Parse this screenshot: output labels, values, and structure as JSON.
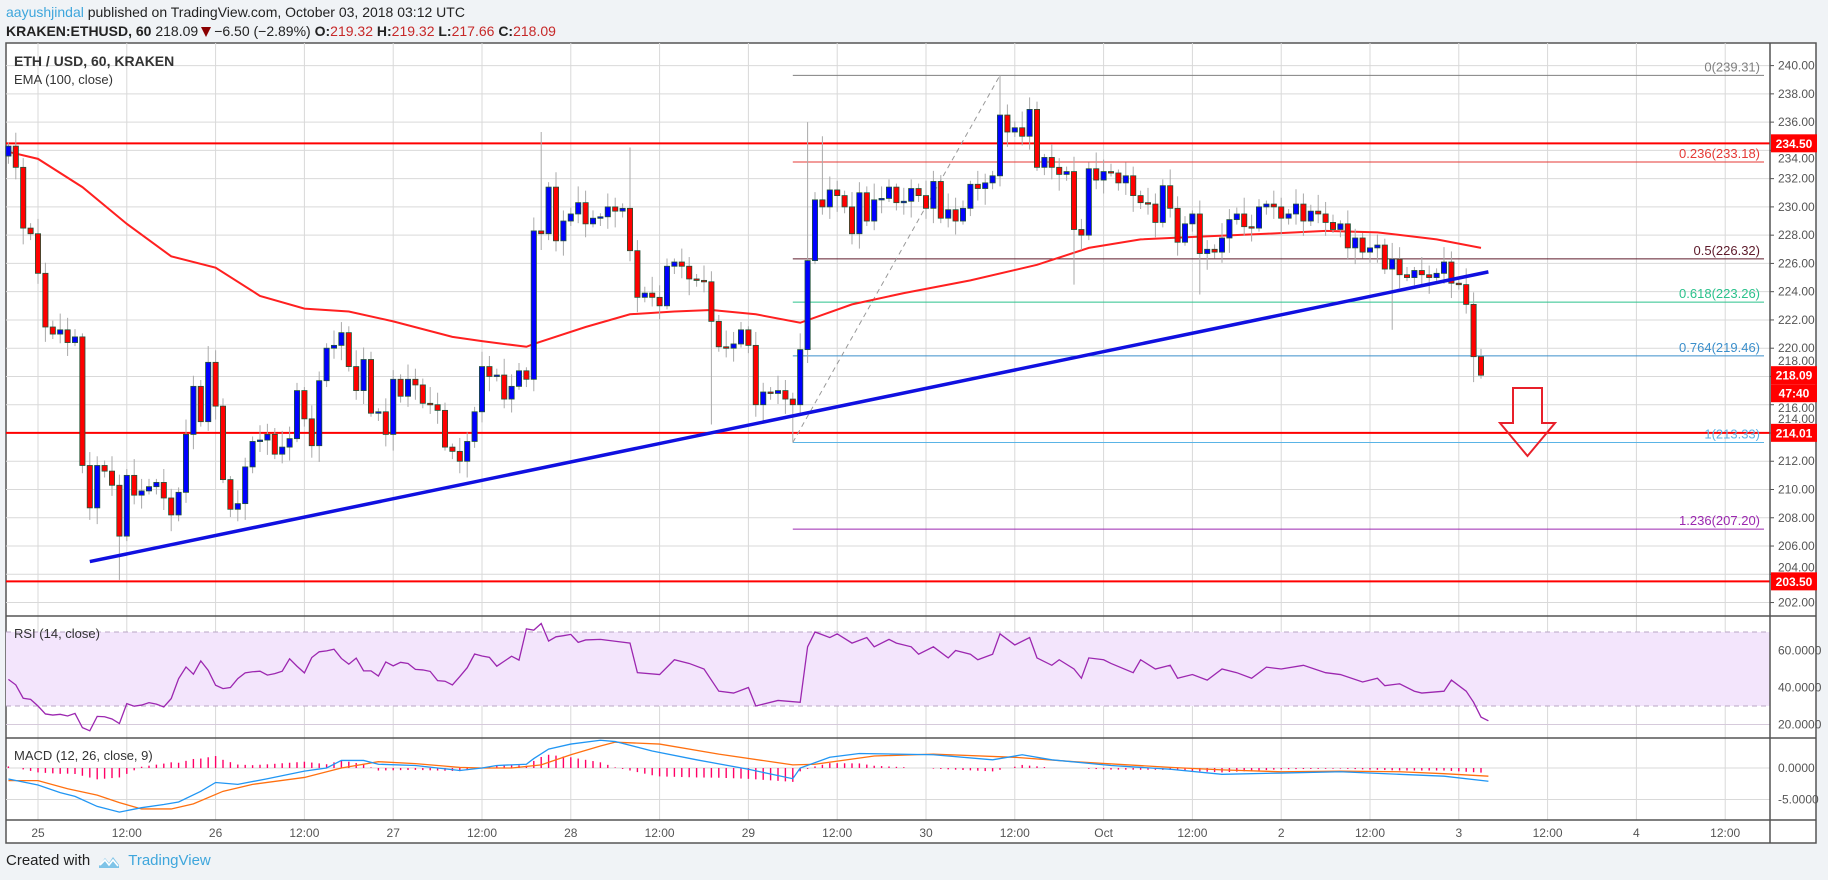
{
  "header": {
    "author": "aayushjindal",
    "published": "published on TradingView.com, October 03, 2018 03:12 UTC",
    "symbol": "KRAKEN:ETHUSD, 60",
    "last": "218.09",
    "change": "−6.50 (−2.89%)",
    "o_label": "O:",
    "o": "219.32",
    "h_label": "H:",
    "h": "219.32",
    "l_label": "L:",
    "l": "217.66",
    "c_label": "C:",
    "c": "218.09",
    "direction_icon": "down-triangle-icon"
  },
  "legend": {
    "title": "ETH / USD, 60, KRAKEN",
    "ema": "EMA (100, close)",
    "rsi": "RSI (14, close)",
    "macd": "MACD (12, 26, close, 9)"
  },
  "footer": {
    "created": "Created with",
    "brand": "TradingView"
  },
  "colors": {
    "up": "#0000ff",
    "down": "#ff0000",
    "border": "#225437",
    "ema": "#ff2020",
    "trend": "#1010e0",
    "hline": "#ff0000",
    "rsi": "#9c27b0",
    "macd": "#2196f3",
    "signal": "#ff7010",
    "hist": "#ff0066"
  },
  "chart_data": {
    "type": "candlestick",
    "interval": "60",
    "time_labels": [
      "25",
      "12:00",
      "26",
      "12:00",
      "27",
      "12:00",
      "28",
      "12:00",
      "29",
      "12:00",
      "30",
      "12:00",
      "Oct",
      "12:00",
      "2",
      "12:00",
      "3",
      "12:00",
      "4",
      "12:00"
    ],
    "ylim": [
      201,
      241.5
    ],
    "yticks": [
      202,
      204,
      206,
      208,
      210,
      212,
      214,
      216,
      218,
      220,
      222,
      224,
      226,
      228,
      230,
      232,
      234,
      236,
      238,
      240
    ],
    "first_open": 233.6,
    "closes": [
      234.3,
      232.8,
      228.5,
      228.1,
      225.3,
      221.5,
      221.0,
      221.3,
      220.4,
      220.8,
      211.7,
      208.7,
      211.7,
      211.3,
      210.3,
      206.7,
      211.0,
      209.6,
      209.9,
      210.2,
      210.5,
      209.4,
      208.2,
      209.8,
      213.9,
      217.3,
      214.8,
      219.0,
      215.9,
      210.7,
      208.6,
      209.0,
      211.6,
      213.4,
      213.5,
      213.9,
      212.5,
      213.0,
      213.6,
      217.0,
      215.0,
      213.1,
      217.7,
      220.0,
      220.2,
      221.1,
      218.7,
      217.0,
      219.2,
      215.4,
      215.5,
      213.9,
      217.8,
      216.6,
      217.8,
      217.4,
      216.1,
      216.0,
      215.6,
      213.0,
      212.7,
      212.0,
      213.4,
      215.5,
      218.7,
      218.0,
      218.1,
      216.4,
      217.3,
      218.4,
      217.8,
      228.3,
      228.1,
      231.4,
      227.6,
      229.0,
      229.5,
      230.3,
      228.8,
      229.2,
      229.3,
      230.0,
      229.7,
      229.9,
      226.9,
      223.6,
      223.9,
      223.6,
      223.0,
      225.8,
      226.1,
      225.8,
      224.9,
      224.8,
      224.7,
      221.9,
      220.1,
      220.0,
      220.3,
      221.3,
      220.2,
      216.0,
      216.9,
      216.8,
      217.0,
      216.4,
      216.0,
      219.9,
      226.2,
      230.5,
      230.0,
      231.2,
      230.8,
      230.0,
      228.1,
      231.0,
      229.0,
      230.5,
      230.6,
      231.4,
      230.3,
      230.4,
      231.3,
      230.8,
      229.9,
      231.8,
      229.2,
      229.8,
      229.0,
      229.9,
      231.6,
      231.3,
      231.7,
      232.2,
      236.5,
      235.3,
      235.6,
      235.0,
      236.9,
      232.8,
      233.5,
      232.8,
      232.3,
      232.5,
      228.4,
      228.0,
      232.7,
      231.9,
      232.5,
      232.4,
      231.7,
      232.2,
      230.8,
      230.3,
      230.2,
      228.9,
      231.5,
      229.9,
      227.5,
      228.8,
      229.5,
      226.7,
      227.0,
      226.8,
      227.8,
      229.1,
      229.5,
      228.6,
      228.5,
      230.0,
      230.2,
      230.0,
      229.2,
      229.5,
      230.2,
      229.0,
      229.7,
      229.5,
      228.9,
      228.4,
      228.8,
      227.1,
      227.8,
      226.8,
      227.1,
      227.3,
      225.6,
      226.3,
      225.2,
      225.0,
      225.5,
      225.2,
      225.0,
      225.3,
      226.1,
      224.6,
      224.5,
      223.1,
      219.4,
      218.09
    ],
    "extremes": [
      [
        134,
        "h",
        239.31
      ],
      [
        106,
        "l",
        213.33
      ],
      [
        72,
        "h",
        235.3
      ],
      [
        84,
        "h",
        234.2
      ],
      [
        15,
        "l",
        203.6
      ],
      [
        95,
        "l",
        214.6
      ],
      [
        144,
        "l",
        224.5
      ],
      [
        161,
        "l",
        223.8
      ],
      [
        187,
        "l",
        221.3
      ],
      [
        198,
        "l",
        217.6
      ],
      [
        108,
        "h",
        236.0
      ],
      [
        110,
        "h",
        235.0
      ]
    ],
    "ema": [
      [
        0,
        233.9
      ],
      [
        4,
        233.4
      ],
      [
        10,
        231.4
      ],
      [
        16,
        228.8
      ],
      [
        22,
        226.5
      ],
      [
        28,
        225.7
      ],
      [
        34,
        223.7
      ],
      [
        40,
        222.8
      ],
      [
        46,
        222.6
      ],
      [
        52,
        221.9
      ],
      [
        60,
        220.8
      ],
      [
        64,
        220.5
      ],
      [
        70,
        220.1
      ],
      [
        71,
        220.3
      ],
      [
        78,
        221.5
      ],
      [
        84,
        222.4
      ],
      [
        90,
        222.6
      ],
      [
        95,
        222.7
      ],
      [
        101,
        222.4
      ],
      [
        107,
        221.8
      ],
      [
        114,
        223.1
      ],
      [
        121,
        223.9
      ],
      [
        130,
        224.8
      ],
      [
        139,
        225.9
      ],
      [
        146,
        227.1
      ],
      [
        153,
        227.7
      ],
      [
        161,
        227.9
      ],
      [
        170,
        228.1
      ],
      [
        178,
        228.3
      ],
      [
        185,
        228.2
      ],
      [
        193,
        227.7
      ],
      [
        199,
        227.1
      ]
    ],
    "trendline": [
      [
        11,
        204.9
      ],
      [
        200,
        225.4
      ]
    ],
    "hlines": [
      {
        "price": 234.5,
        "label": "234.50"
      },
      {
        "price": 214.01,
        "label": "214.01"
      },
      {
        "price": 203.5,
        "label": "203.50"
      }
    ],
    "last_price": {
      "price": 218.09,
      "label": "218.09",
      "countdown": "47:40"
    },
    "fib": {
      "from": [
        106,
        213.33
      ],
      "to": [
        134,
        239.31
      ],
      "levels": [
        {
          "ratio": "0",
          "price": 239.31,
          "label": "0(239.31)",
          "color": "#808080"
        },
        {
          "ratio": "0.236",
          "price": 233.18,
          "label": "0.236(233.18)",
          "color": "#e53935"
        },
        {
          "ratio": "0.5",
          "price": 226.32,
          "label": "0.5(226.32)",
          "color": "#5d1a2a"
        },
        {
          "ratio": "0.618",
          "price": 223.26,
          "label": "0.618(223.26)",
          "color": "#2bc28c"
        },
        {
          "ratio": "0.764",
          "price": 219.46,
          "label": "0.764(219.46)",
          "color": "#3b8fcb"
        },
        {
          "ratio": "1",
          "price": 213.33,
          "label": "1(213.33)",
          "color": "#5ab4e6"
        },
        {
          "ratio": "1.236",
          "price": 207.2,
          "label": "1.236(207.20)",
          "color": "#9c27b0"
        }
      ]
    },
    "arrow": {
      "direction": "down",
      "color": "#e8202a"
    },
    "rsi": {
      "ticks": [
        [
          "60.0000",
          60
        ],
        [
          "40.0000",
          40
        ],
        [
          "20.0000",
          20
        ]
      ],
      "band": [
        30,
        70
      ],
      "values": [
        [
          0,
          44.4
        ],
        [
          1,
          41.4
        ],
        [
          2,
          34.2
        ],
        [
          3,
          33.6
        ],
        [
          4,
          30
        ],
        [
          5,
          25.7
        ],
        [
          6,
          25.1
        ],
        [
          7,
          25.5
        ],
        [
          8,
          24.6
        ],
        [
          9,
          26
        ],
        [
          10,
          18.3
        ],
        [
          11,
          16.6
        ],
        [
          12,
          24.4
        ],
        [
          13,
          24.2
        ],
        [
          14,
          23
        ],
        [
          15,
          20.5
        ],
        [
          16,
          31.3
        ],
        [
          17,
          29.9
        ],
        [
          18,
          30.5
        ],
        [
          19,
          31.8
        ],
        [
          20,
          31
        ],
        [
          21,
          29.5
        ],
        [
          22,
          34
        ],
        [
          23,
          44.8
        ],
        [
          24,
          51.1
        ],
        [
          25,
          47.2
        ],
        [
          26,
          54.4
        ],
        [
          27,
          49.3
        ],
        [
          28,
          41.2
        ],
        [
          29,
          39.4
        ],
        [
          30,
          40
        ],
        [
          31,
          44.8
        ],
        [
          32,
          47.9
        ],
        [
          33,
          48.5
        ],
        [
          34,
          48.8
        ],
        [
          35,
          46.7
        ],
        [
          36,
          47.5
        ],
        [
          37,
          48.8
        ],
        [
          38,
          55.5
        ],
        [
          39,
          51.5
        ],
        [
          40,
          47.9
        ],
        [
          41,
          56.2
        ],
        [
          42,
          59.3
        ],
        [
          43,
          59.8
        ],
        [
          44,
          60.7
        ],
        [
          45,
          55.7
        ],
        [
          46,
          52.6
        ],
        [
          47,
          55.9
        ],
        [
          48,
          49
        ],
        [
          49,
          49
        ],
        [
          50,
          46.2
        ],
        [
          51,
          53.8
        ],
        [
          52,
          51.7
        ],
        [
          53,
          53.6
        ],
        [
          54,
          53
        ],
        [
          55,
          49.8
        ],
        [
          56,
          49.5
        ],
        [
          57,
          48.7
        ],
        [
          58,
          43.7
        ],
        [
          59,
          43.4
        ],
        [
          60,
          41.4
        ],
        [
          61,
          45.9
        ],
        [
          62,
          50.7
        ],
        [
          63,
          58.1
        ],
        [
          64,
          57
        ],
        [
          65,
          56.3
        ],
        [
          66,
          51.5
        ],
        [
          67,
          54.2
        ],
        [
          68,
          56.9
        ],
        [
          69,
          54.8
        ],
        [
          70,
          71.7
        ],
        [
          71,
          71
        ],
        [
          72,
          74.6
        ],
        [
          73,
          65.1
        ],
        [
          74,
          67.4
        ],
        [
          75,
          68
        ],
        [
          76,
          68.7
        ],
        [
          77,
          64.4
        ],
        [
          78,
          65.7
        ],
        [
          80,
          66
        ],
        [
          82,
          65
        ],
        [
          84,
          64
        ],
        [
          85,
          48
        ],
        [
          88,
          47
        ],
        [
          90,
          55
        ],
        [
          92,
          53
        ],
        [
          94,
          50
        ],
        [
          96,
          38
        ],
        [
          98,
          37
        ],
        [
          100,
          40
        ],
        [
          101,
          30
        ],
        [
          104,
          33
        ],
        [
          107,
          32
        ],
        [
          108,
          62
        ],
        [
          109,
          70
        ],
        [
          111,
          67
        ],
        [
          112,
          69
        ],
        [
          114,
          64
        ],
        [
          116,
          67
        ],
        [
          117,
          62
        ],
        [
          119,
          66
        ],
        [
          120,
          64
        ],
        [
          122,
          62
        ],
        [
          123,
          58
        ],
        [
          125,
          62
        ],
        [
          127,
          56
        ],
        [
          128,
          60
        ],
        [
          130,
          58
        ],
        [
          131,
          55
        ],
        [
          133,
          58
        ],
        [
          134,
          69
        ],
        [
          136,
          63
        ],
        [
          138,
          67
        ],
        [
          139,
          56
        ],
        [
          141,
          52
        ],
        [
          142,
          55
        ],
        [
          144,
          50
        ],
        [
          145,
          45
        ],
        [
          146,
          56
        ],
        [
          148,
          55
        ],
        [
          149,
          53
        ],
        [
          152,
          48
        ],
        [
          153,
          55
        ],
        [
          155,
          50
        ],
        [
          157,
          52
        ],
        [
          158,
          45
        ],
        [
          160,
          47
        ],
        [
          162,
          44
        ],
        [
          164,
          50
        ],
        [
          166,
          48
        ],
        [
          168,
          45
        ],
        [
          170,
          51
        ],
        [
          172,
          50
        ],
        [
          175,
          52
        ],
        [
          178,
          48
        ],
        [
          180,
          47
        ],
        [
          183,
          43
        ],
        [
          185,
          45
        ],
        [
          186,
          41
        ],
        [
          188,
          42
        ],
        [
          190,
          38
        ],
        [
          191,
          37
        ],
        [
          194,
          38
        ],
        [
          195,
          44
        ],
        [
          197,
          38
        ],
        [
          198,
          32
        ],
        [
          199,
          24
        ],
        [
          200,
          22
        ]
      ]
    },
    "macd": {
      "ticks": [
        [
          "0.0000",
          0
        ],
        [
          "-5.0000",
          -5
        ]
      ],
      "macd": [
        [
          0,
          -1.75
        ],
        [
          4,
          -2.7
        ],
        [
          7,
          -3.9
        ],
        [
          9,
          -4.5
        ],
        [
          12,
          -6.1
        ],
        [
          15,
          -7.0
        ],
        [
          18,
          -6.3
        ],
        [
          21,
          -5.8
        ],
        [
          23,
          -5.4
        ],
        [
          26,
          -3.7
        ],
        [
          28,
          -2.3
        ],
        [
          31,
          -2.6
        ],
        [
          35,
          -1.7
        ],
        [
          40,
          -0.5
        ],
        [
          43,
          0
        ],
        [
          45,
          1.2
        ],
        [
          48,
          1.2
        ],
        [
          50,
          0.6
        ],
        [
          55,
          0.4
        ],
        [
          58,
          0
        ],
        [
          61,
          -0.4
        ],
        [
          64,
          0
        ],
        [
          66,
          0.4
        ],
        [
          70,
          0.6
        ],
        [
          71,
          1.5
        ],
        [
          73,
          3.0
        ],
        [
          76,
          3.8
        ],
        [
          80,
          4.4
        ],
        [
          82,
          4.2
        ],
        [
          87,
          2.7
        ],
        [
          93,
          1.3
        ],
        [
          100,
          -0.2
        ],
        [
          106,
          -1.7
        ],
        [
          107,
          0
        ],
        [
          111,
          1.7
        ],
        [
          115,
          2.3
        ],
        [
          125,
          2.1
        ],
        [
          133,
          1.3
        ],
        [
          137,
          2.1
        ],
        [
          141,
          1.3
        ],
        [
          149,
          0.4
        ],
        [
          157,
          -0.2
        ],
        [
          164,
          -1.0
        ],
        [
          172,
          -0.8
        ],
        [
          180,
          -0.6
        ],
        [
          188,
          -1.0
        ],
        [
          194,
          -1.3
        ],
        [
          200,
          -2.1
        ]
      ],
      "signal": [
        [
          0,
          -2.0
        ],
        [
          4,
          -2.0
        ],
        [
          8,
          -3.3
        ],
        [
          12,
          -4.3
        ],
        [
          15,
          -5.5
        ],
        [
          18,
          -6.5
        ],
        [
          22,
          -6.5
        ],
        [
          25,
          -5.7
        ],
        [
          29,
          -3.7
        ],
        [
          33,
          -2.6
        ],
        [
          40,
          -1.5
        ],
        [
          45,
          0
        ],
        [
          50,
          1.0
        ],
        [
          55,
          0.7
        ],
        [
          61,
          0.1
        ],
        [
          64,
          0
        ],
        [
          68,
          0
        ],
        [
          72,
          0.5
        ],
        [
          76,
          2.1
        ],
        [
          80,
          3.5
        ],
        [
          82,
          4.1
        ],
        [
          88,
          3.8
        ],
        [
          96,
          2.2
        ],
        [
          106,
          0.5
        ],
        [
          109,
          0.6
        ],
        [
          117,
          1.9
        ],
        [
          125,
          2.2
        ],
        [
          136,
          1.7
        ],
        [
          144,
          1.0
        ],
        [
          157,
          0.1
        ],
        [
          164,
          -0.3
        ],
        [
          172,
          -0.6
        ],
        [
          180,
          -0.5
        ],
        [
          188,
          -0.6
        ],
        [
          194,
          -0.9
        ],
        [
          200,
          -1.3
        ]
      ]
    }
  }
}
